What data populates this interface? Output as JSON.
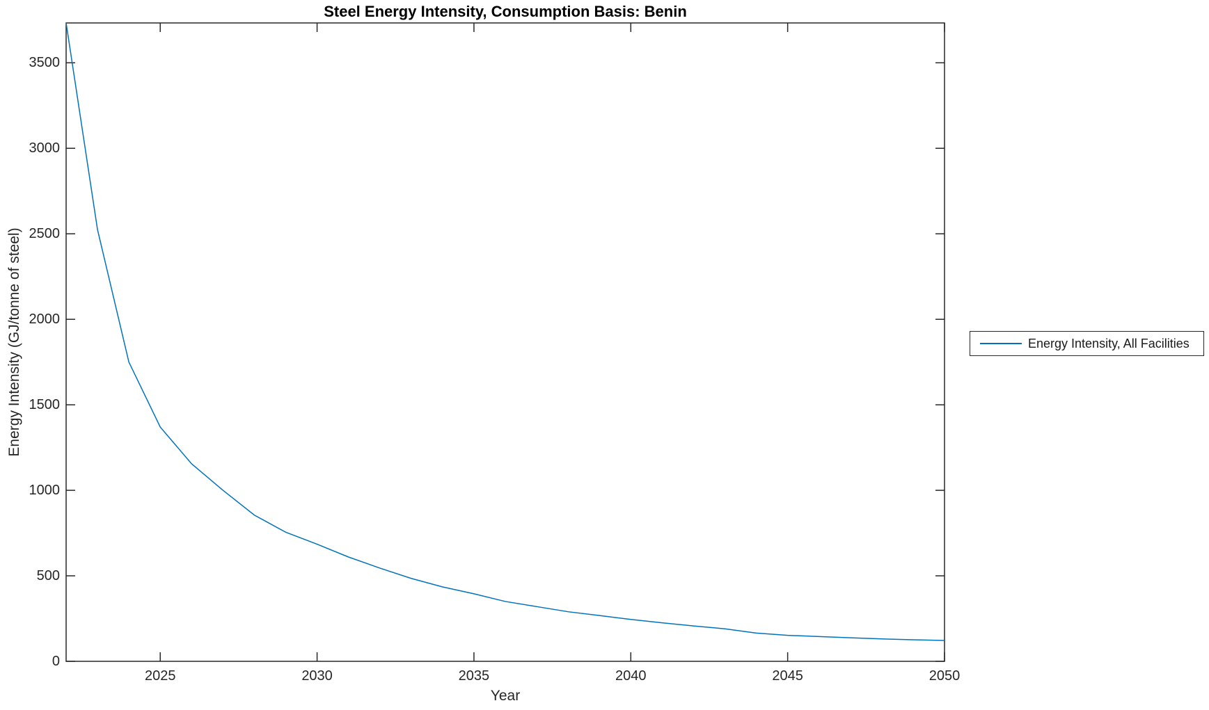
{
  "figure": {
    "background": "#ffffff",
    "axes_color": "#262626"
  },
  "chart_data": {
    "type": "line",
    "title": "Steel Energy Intensity, Consumption Basis: Benin",
    "xlabel": "Year",
    "ylabel": "Energy Intensity (GJ/tonne of steel)",
    "xlim": [
      2022,
      2050
    ],
    "ylim": [
      0,
      3733
    ],
    "xticks": [
      2025,
      2030,
      2035,
      2040,
      2045,
      2050
    ],
    "yticks": [
      0,
      500,
      1000,
      1500,
      2000,
      2500,
      3000,
      3500
    ],
    "grid": false,
    "box": true,
    "legend_position": "outside-right",
    "series": [
      {
        "name": "Energy Intensity, All Facilities",
        "color": "#0072BD",
        "x": [
          2022,
          2023,
          2024,
          2025,
          2026,
          2027,
          2028,
          2029,
          2030,
          2031,
          2032,
          2033,
          2034,
          2035,
          2036,
          2037,
          2038,
          2039,
          2040,
          2041,
          2042,
          2043,
          2044,
          2045,
          2046,
          2047,
          2048,
          2049,
          2050
        ],
        "values": [
          3733,
          2525,
          1750,
          1370,
          1155,
          1000,
          855,
          755,
          685,
          610,
          545,
          485,
          435,
          395,
          350,
          320,
          290,
          268,
          245,
          225,
          207,
          190,
          165,
          152,
          145,
          138,
          131,
          126,
          122
        ]
      }
    ]
  }
}
